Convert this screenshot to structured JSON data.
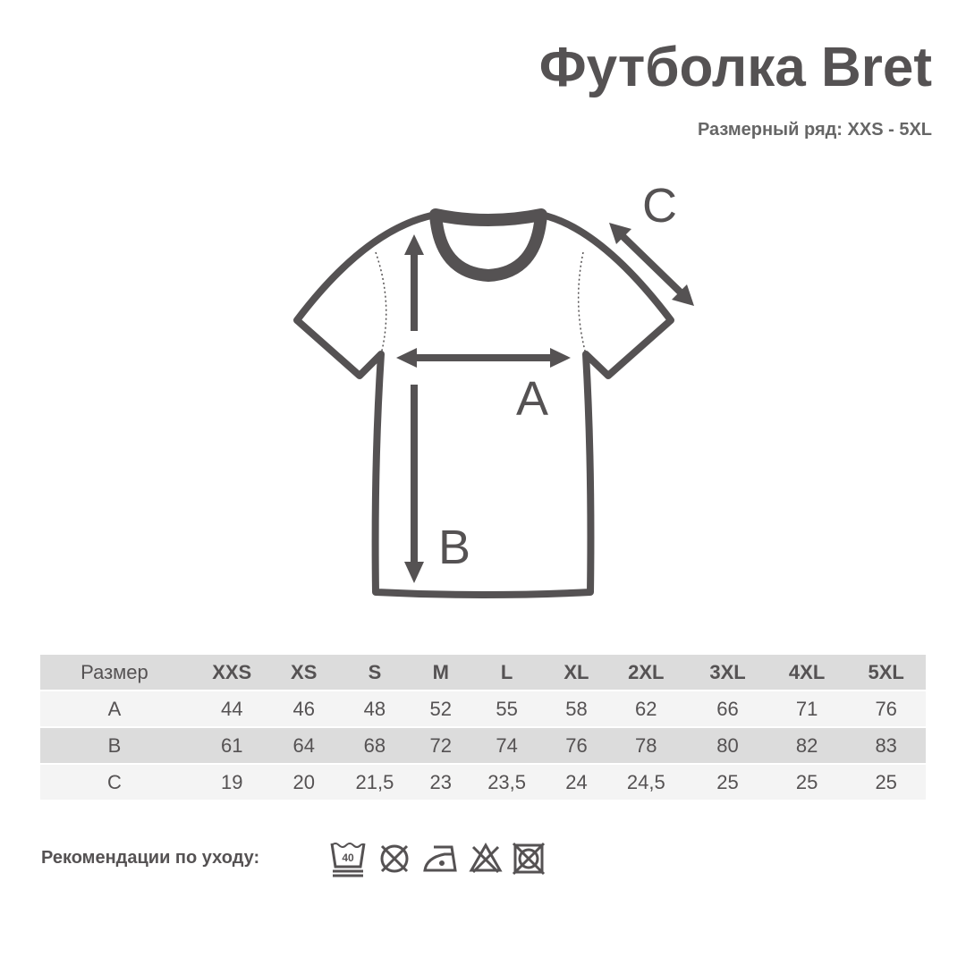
{
  "title": "Футболка Bret",
  "subtitle": "Размерный ряд: XXS - 5XL",
  "diagram": {
    "labels": {
      "a": "A",
      "b": "B",
      "c": "C"
    },
    "color": "#555253"
  },
  "table": {
    "headers": [
      "Размер",
      "XXS",
      "XS",
      "S",
      "M",
      "L",
      "XL",
      "2XL",
      "3XL",
      "4XL",
      "5XL"
    ],
    "rows": [
      [
        "A",
        "44",
        "46",
        "48",
        "52",
        "55",
        "58",
        "62",
        "66",
        "71",
        "76"
      ],
      [
        "B",
        "61",
        "64",
        "68",
        "72",
        "74",
        "76",
        "78",
        "80",
        "82",
        "83"
      ],
      [
        "C",
        "19",
        "20",
        "21,5",
        "23",
        "23,5",
        "24",
        "24,5",
        "25",
        "25",
        "25"
      ]
    ]
  },
  "care": {
    "label": "Рекомендации по уходу:",
    "icons": [
      "wash-40-icon",
      "no-bleach-tumble-dry-icon",
      "iron-low-icon",
      "no-bleach-icon",
      "no-tumble-dry-icon"
    ],
    "wash_temp": "40"
  }
}
